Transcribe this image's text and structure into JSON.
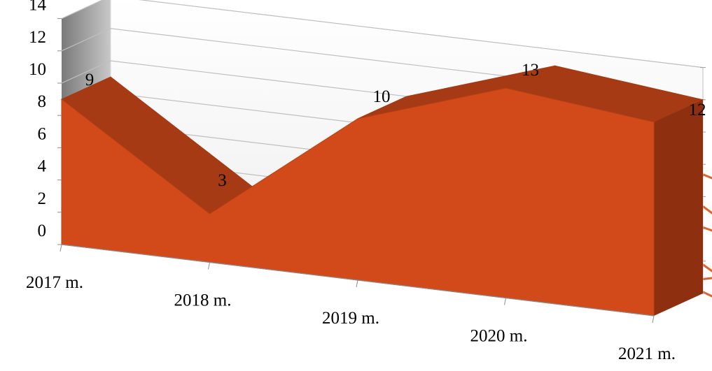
{
  "chart_data": {
    "type": "area",
    "three_d": true,
    "categories": [
      "2017 m.",
      "2018 m.",
      "2019 m.",
      "2020 m.",
      "2021 m."
    ],
    "values": [
      9,
      3,
      10,
      13,
      12
    ],
    "data_labels": [
      "9",
      "3",
      "10",
      "13",
      "12"
    ],
    "ylim": [
      0,
      14
    ],
    "yticks": [
      "0",
      "2",
      "4",
      "6",
      "8",
      "10",
      "12",
      "14"
    ],
    "grid": true,
    "legend": "none",
    "title": "",
    "xlabel": "",
    "ylabel": "",
    "colors": {
      "front": "#d24a19",
      "top": "#a53a14",
      "side": "#8e300f",
      "back_wall": "#f7f7f7",
      "side_wall": "#8c8c8c",
      "floor": "#a6a6a6",
      "grid": "#bfbfbf"
    }
  }
}
